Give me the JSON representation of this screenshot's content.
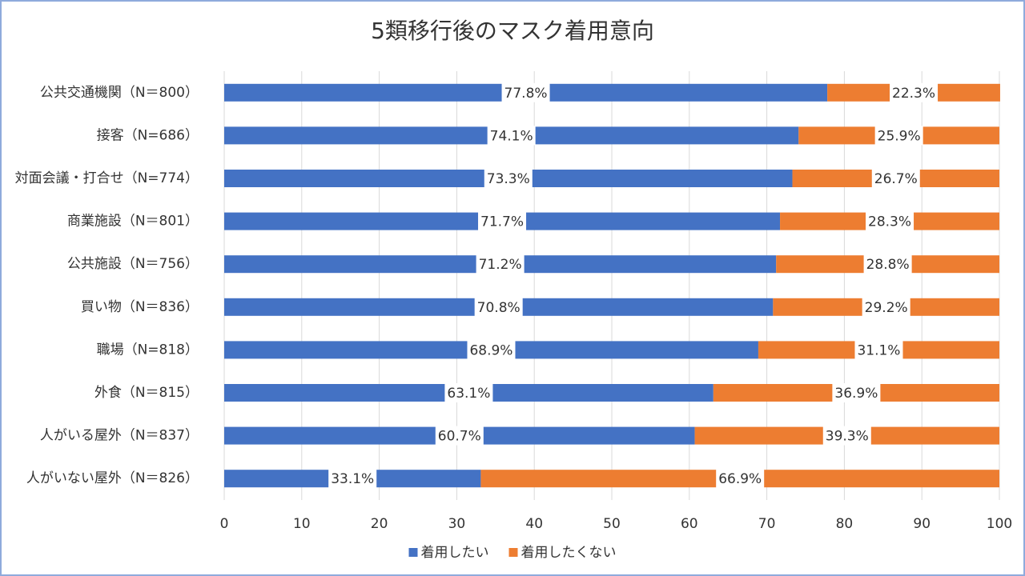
{
  "chart_data": {
    "type": "stacked-barh",
    "title": "5類移行後のマスク着用意向",
    "categories": [
      "公共交通機関（N＝800）",
      "接客（N=686）",
      "対面会議・打合せ（N=774）",
      "商業施設（N＝801）",
      "公共施設（N＝756）",
      "買い物（N＝836）",
      "職場（N=818）",
      "外食（N＝815）",
      "人がいる屋外（N＝837）",
      "人がいない屋外（N＝826）"
    ],
    "series": [
      {
        "name": "着用したい",
        "color": "#4472c4",
        "values": [
          77.8,
          74.1,
          73.3,
          71.7,
          71.2,
          70.8,
          68.9,
          63.1,
          60.7,
          33.1
        ],
        "value_labels": [
          "77.8%",
          "74.1%",
          "73.3%",
          "71.7%",
          "71.2%",
          "70.8%",
          "68.9%",
          "63.1%",
          "60.7%",
          "33.1%"
        ]
      },
      {
        "name": "着用したくない",
        "color": "#ed7d31",
        "values": [
          22.3,
          25.9,
          26.7,
          28.3,
          28.8,
          29.2,
          31.1,
          36.9,
          39.3,
          66.9
        ],
        "value_labels": [
          "22.3%",
          "25.9%",
          "26.7%",
          "28.3%",
          "28.8%",
          "29.2%",
          "31.1%",
          "36.9%",
          "39.3%",
          "66.9%"
        ]
      }
    ],
    "xlim": [
      0,
      100
    ],
    "xticks": [
      0,
      10,
      20,
      30,
      40,
      50,
      60,
      70,
      80,
      90,
      100
    ],
    "grid": true,
    "legend": "bottom"
  }
}
